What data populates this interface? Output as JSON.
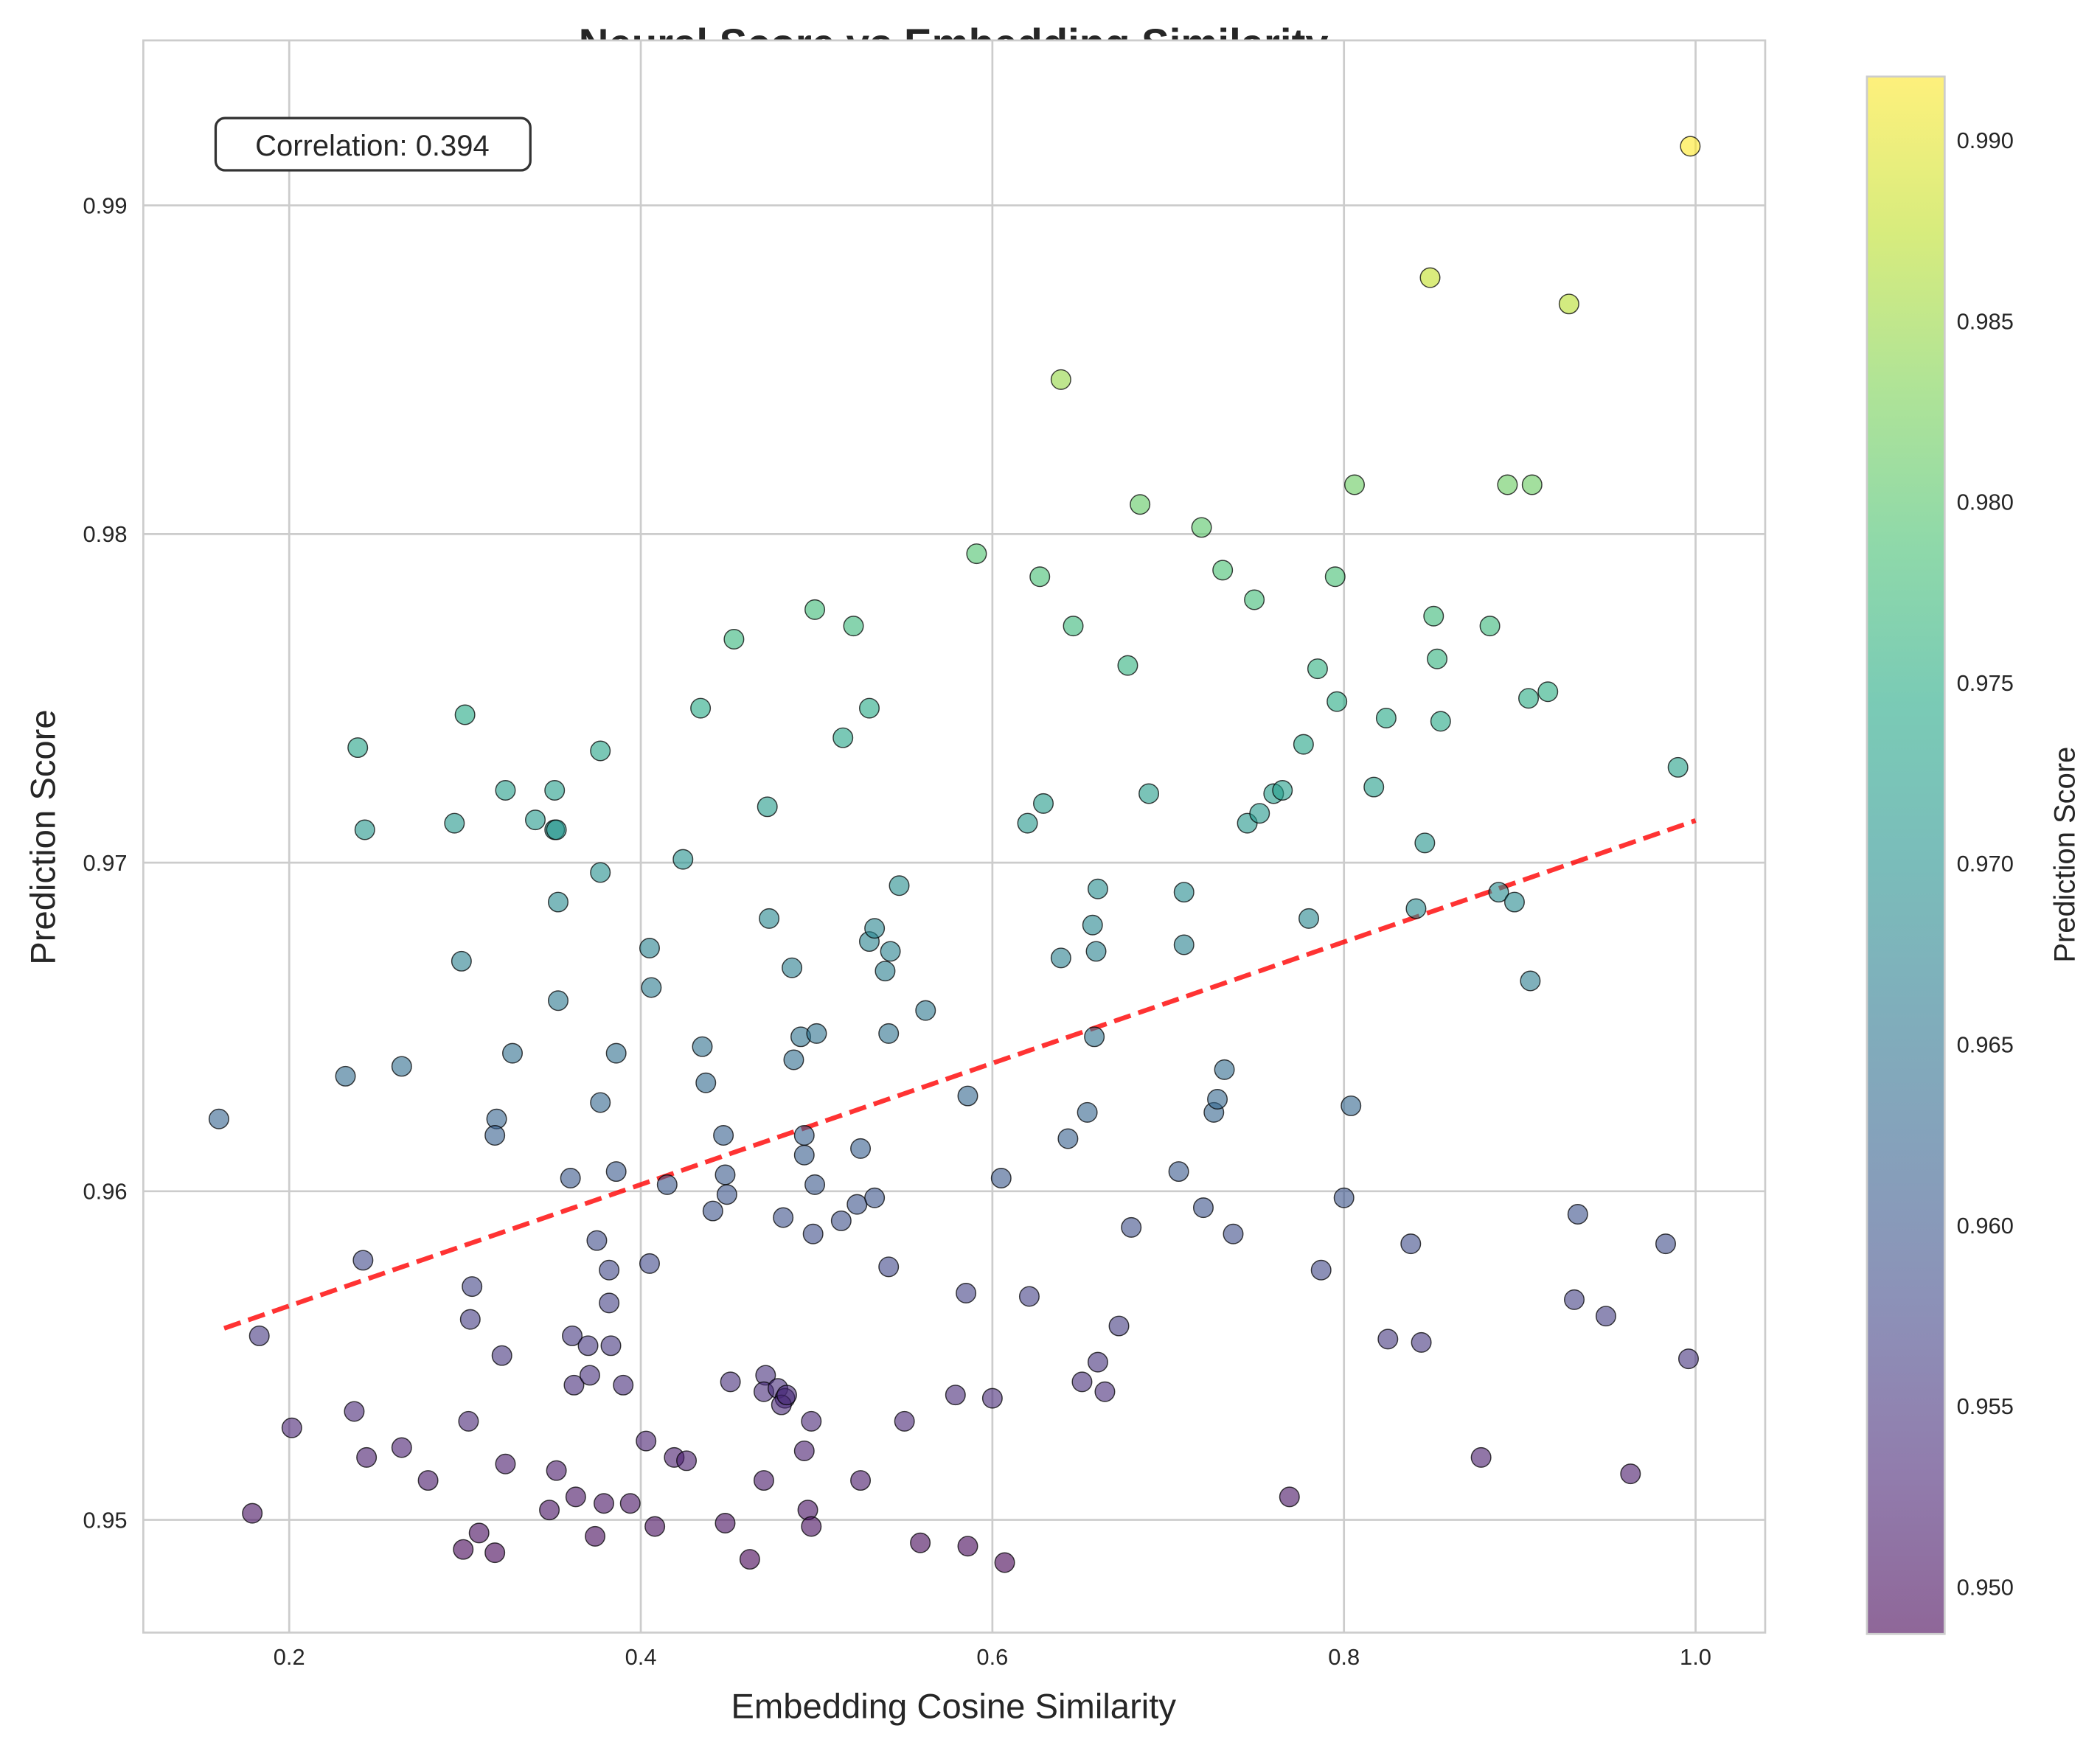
{
  "chart_data": {
    "type": "scatter",
    "title": "Neural Score vs Embedding Similarity",
    "xlabel": "Embedding Cosine Similarity",
    "ylabel": "Prediction Score",
    "xlim": [
      0.117,
      1.0396
    ],
    "ylim": [
      0.94657,
      0.99502
    ],
    "xticks": [
      0.2,
      0.4,
      0.6,
      0.8,
      1.0
    ],
    "xtick_labels": [
      "0.2",
      "0.4",
      "0.6",
      "0.8",
      "1.0"
    ],
    "yticks": [
      0.95,
      0.96,
      0.97,
      0.98,
      0.99
    ],
    "ytick_labels": [
      "0.95",
      "0.96",
      "0.97",
      "0.98",
      "0.99"
    ],
    "grid": true,
    "annotation": "Correlation: 0.394",
    "trendline": {
      "slope": 0.01846,
      "intercept": 0.95282,
      "x_range": [
        0.163,
        1.0
      ],
      "color": "#ff0000",
      "style": "dashed"
    },
    "colormap": "viridis",
    "colorbar": {
      "label": "Prediction Score",
      "range": [
        0.9487,
        0.99176
      ],
      "ticks": [
        0.95,
        0.955,
        0.96,
        0.965,
        0.97,
        0.975,
        0.98,
        0.985,
        0.99
      ],
      "tick_labels": [
        "0.950",
        "0.955",
        "0.960",
        "0.965",
        "0.970",
        "0.975",
        "0.980",
        "0.985",
        "0.990"
      ]
    },
    "points": [
      [
        0.16,
        0.9622
      ],
      [
        0.183,
        0.9556
      ],
      [
        0.179,
        0.9502
      ],
      [
        0.2015,
        0.9528
      ],
      [
        0.239,
        0.9735
      ],
      [
        0.243,
        0.971
      ],
      [
        0.232,
        0.9635
      ],
      [
        0.264,
        0.9638
      ],
      [
        0.242,
        0.9579
      ],
      [
        0.237,
        0.9533
      ],
      [
        0.244,
        0.9519
      ],
      [
        0.264,
        0.9522
      ],
      [
        0.279,
        0.9512
      ],
      [
        0.3,
        0.9745
      ],
      [
        0.294,
        0.9712
      ],
      [
        0.298,
        0.967
      ],
      [
        0.304,
        0.9571
      ],
      [
        0.303,
        0.9561
      ],
      [
        0.302,
        0.953
      ],
      [
        0.299,
        0.9491
      ],
      [
        0.308,
        0.9496
      ],
      [
        0.317,
        0.949
      ],
      [
        0.323,
        0.9722
      ],
      [
        0.318,
        0.9622
      ],
      [
        0.317,
        0.9617
      ],
      [
        0.327,
        0.9642
      ],
      [
        0.321,
        0.955
      ],
      [
        0.323,
        0.9517
      ],
      [
        0.34,
        0.9713
      ],
      [
        0.351,
        0.9722
      ],
      [
        0.351,
        0.971
      ],
      [
        0.352,
        0.971
      ],
      [
        0.353,
        0.9688
      ],
      [
        0.353,
        0.9658
      ],
      [
        0.36,
        0.9604
      ],
      [
        0.361,
        0.9556
      ],
      [
        0.362,
        0.9541
      ],
      [
        0.352,
        0.9515
      ],
      [
        0.363,
        0.9507
      ],
      [
        0.348,
        0.9503
      ],
      [
        0.37,
        0.9553
      ],
      [
        0.371,
        0.9544
      ],
      [
        0.375,
        0.9585
      ],
      [
        0.377,
        0.9734
      ],
      [
        0.377,
        0.9697
      ],
      [
        0.377,
        0.9627
      ],
      [
        0.382,
        0.9576
      ],
      [
        0.382,
        0.9566
      ],
      [
        0.383,
        0.9553
      ],
      [
        0.379,
        0.9505
      ],
      [
        0.374,
        0.9495
      ],
      [
        0.386,
        0.9642
      ],
      [
        0.386,
        0.9606
      ],
      [
        0.39,
        0.9541
      ],
      [
        0.394,
        0.9505
      ],
      [
        0.403,
        0.9524
      ],
      [
        0.405,
        0.9674
      ],
      [
        0.406,
        0.9662
      ],
      [
        0.405,
        0.9578
      ],
      [
        0.408,
        0.9498
      ],
      [
        0.415,
        0.9602
      ],
      [
        0.419,
        0.9519
      ],
      [
        0.426,
        0.9518
      ],
      [
        0.424,
        0.9701
      ],
      [
        0.435,
        0.9644
      ],
      [
        0.437,
        0.9633
      ],
      [
        0.434,
        0.9747
      ],
      [
        0.441,
        0.9594
      ],
      [
        0.447,
        0.9617
      ],
      [
        0.448,
        0.9605
      ],
      [
        0.449,
        0.9599
      ],
      [
        0.451,
        0.9542
      ],
      [
        0.448,
        0.9499
      ],
      [
        0.453,
        0.9768
      ],
      [
        0.462,
        0.9488
      ],
      [
        0.472,
        0.9717
      ],
      [
        0.473,
        0.9683
      ],
      [
        0.471,
        0.9544
      ],
      [
        0.47,
        0.9539
      ],
      [
        0.47,
        0.9512
      ],
      [
        0.481,
        0.9592
      ],
      [
        0.478,
        0.954
      ],
      [
        0.482,
        0.9537
      ],
      [
        0.48,
        0.9535
      ],
      [
        0.483,
        0.9538
      ],
      [
        0.486,
        0.9668
      ],
      [
        0.487,
        0.964
      ],
      [
        0.491,
        0.9647
      ],
      [
        0.493,
        0.9617
      ],
      [
        0.493,
        0.9611
      ],
      [
        0.493,
        0.9521
      ],
      [
        0.495,
        0.9503
      ],
      [
        0.497,
        0.9498
      ],
      [
        0.497,
        0.953
      ],
      [
        0.499,
        0.9777
      ],
      [
        0.5,
        0.9648
      ],
      [
        0.499,
        0.9602
      ],
      [
        0.498,
        0.9587
      ],
      [
        0.514,
        0.9591
      ],
      [
        0.515,
        0.9738
      ],
      [
        0.521,
        0.9772
      ],
      [
        0.523,
        0.9596
      ],
      [
        0.525,
        0.9613
      ],
      [
        0.525,
        0.9512
      ],
      [
        0.53,
        0.9747
      ],
      [
        0.53,
        0.9676
      ],
      [
        0.533,
        0.968
      ],
      [
        0.533,
        0.9598
      ],
      [
        0.539,
        0.9667
      ],
      [
        0.542,
        0.9673
      ],
      [
        0.541,
        0.9648
      ],
      [
        0.541,
        0.9577
      ],
      [
        0.55,
        0.953
      ],
      [
        0.547,
        0.9693
      ],
      [
        0.562,
        0.9655
      ],
      [
        0.559,
        0.9493
      ],
      [
        0.586,
        0.9629
      ],
      [
        0.585,
        0.9569
      ],
      [
        0.579,
        0.9538
      ],
      [
        0.586,
        0.9492
      ],
      [
        0.591,
        0.9794
      ],
      [
        0.6,
        0.9537
      ],
      [
        0.605,
        0.9604
      ],
      [
        0.607,
        0.9487
      ],
      [
        0.62,
        0.9712
      ],
      [
        0.621,
        0.9568
      ],
      [
        0.627,
        0.9787
      ],
      [
        0.629,
        0.9718
      ],
      [
        0.639,
        0.9847
      ],
      [
        0.639,
        0.9671
      ],
      [
        0.643,
        0.9616
      ],
      [
        0.646,
        0.9772
      ],
      [
        0.651,
        0.9542
      ],
      [
        0.654,
        0.9624
      ],
      [
        0.657,
        0.9681
      ],
      [
        0.658,
        0.9647
      ],
      [
        0.659,
        0.9673
      ],
      [
        0.66,
        0.9692
      ],
      [
        0.66,
        0.9548
      ],
      [
        0.664,
        0.9539
      ],
      [
        0.672,
        0.9559
      ],
      [
        0.677,
        0.976
      ],
      [
        0.679,
        0.9589
      ],
      [
        0.684,
        0.9809
      ],
      [
        0.689,
        0.9721
      ],
      [
        0.706,
        0.9606
      ],
      [
        0.709,
        0.9691
      ],
      [
        0.709,
        0.9675
      ],
      [
        0.719,
        0.9802
      ],
      [
        0.72,
        0.9595
      ],
      [
        0.726,
        0.9624
      ],
      [
        0.728,
        0.9628
      ],
      [
        0.731,
        0.9789
      ],
      [
        0.732,
        0.9637
      ],
      [
        0.737,
        0.9587
      ],
      [
        0.745,
        0.9712
      ],
      [
        0.749,
        0.978
      ],
      [
        0.752,
        0.9715
      ],
      [
        0.76,
        0.9721
      ],
      [
        0.765,
        0.9722
      ],
      [
        0.769,
        0.9507
      ],
      [
        0.777,
        0.9736
      ],
      [
        0.78,
        0.9683
      ],
      [
        0.785,
        0.9759
      ],
      [
        0.787,
        0.9576
      ],
      [
        0.795,
        0.9787
      ],
      [
        0.796,
        0.9749
      ],
      [
        0.8,
        0.9598
      ],
      [
        0.804,
        0.9626
      ],
      [
        0.806,
        0.9815
      ],
      [
        0.817,
        0.9723
      ],
      [
        0.824,
        0.9744
      ],
      [
        0.825,
        0.9555
      ],
      [
        0.838,
        0.9584
      ],
      [
        0.841,
        0.9686
      ],
      [
        0.844,
        0.9554
      ],
      [
        0.846,
        0.9706
      ],
      [
        0.849,
        0.9878
      ],
      [
        0.851,
        0.9775
      ],
      [
        0.853,
        0.9762
      ],
      [
        0.855,
        0.9743
      ],
      [
        0.878,
        0.9519
      ],
      [
        0.883,
        0.9772
      ],
      [
        0.888,
        0.9691
      ],
      [
        0.893,
        0.9815
      ],
      [
        0.897,
        0.9688
      ],
      [
        0.905,
        0.975
      ],
      [
        0.906,
        0.9664
      ],
      [
        0.907,
        0.9815
      ],
      [
        0.916,
        0.9752
      ],
      [
        0.928,
        0.987
      ],
      [
        0.931,
        0.9567
      ],
      [
        0.933,
        0.9593
      ],
      [
        0.949,
        0.9562
      ],
      [
        0.963,
        0.9514
      ],
      [
        0.983,
        0.9584
      ],
      [
        0.99,
        0.9729
      ],
      [
        0.996,
        0.9549
      ],
      [
        0.997,
        0.9918
      ]
    ]
  }
}
